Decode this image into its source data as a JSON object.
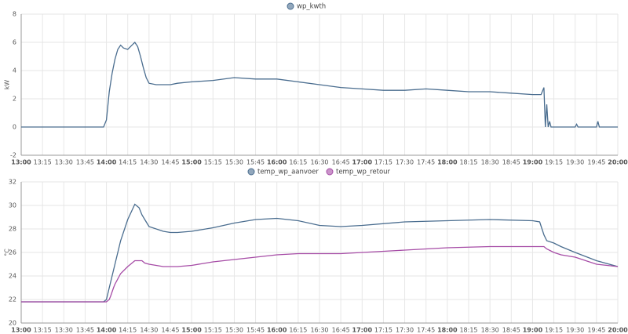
{
  "chart_data": [
    {
      "type": "line",
      "y_label": "kW",
      "x": [
        "13:00",
        "13:45",
        "13:58",
        "14:00",
        "14:02",
        "14:04",
        "14:06",
        "14:08",
        "14:10",
        "14:12",
        "14:15",
        "14:18",
        "14:20",
        "14:22",
        "14:24",
        "14:26",
        "14:28",
        "14:30",
        "14:35",
        "14:45",
        "14:50",
        "15:00",
        "15:15",
        "15:30",
        "15:45",
        "16:00",
        "16:15",
        "16:30",
        "16:45",
        "17:00",
        "17:15",
        "17:30",
        "17:45",
        "18:00",
        "18:15",
        "18:30",
        "18:45",
        "19:00",
        "19:06",
        "19:08",
        "19:09",
        "19:10",
        "19:11",
        "19:12",
        "19:13",
        "19:30",
        "19:31",
        "19:32",
        "19:45",
        "19:46",
        "19:47",
        "20:00"
      ],
      "series": [
        {
          "name": "wp_kwth",
          "color": "#4a6d8f",
          "values": [
            0,
            0,
            0,
            0.5,
            2.5,
            3.8,
            4.8,
            5.5,
            5.8,
            5.6,
            5.5,
            5.8,
            6.0,
            5.7,
            5.0,
            4.2,
            3.5,
            3.1,
            3.0,
            3.0,
            3.1,
            3.2,
            3.3,
            3.5,
            3.4,
            3.4,
            3.2,
            3.0,
            2.8,
            2.7,
            2.6,
            2.6,
            2.7,
            2.6,
            2.5,
            2.5,
            2.4,
            2.3,
            2.3,
            2.8,
            0,
            1.6,
            0,
            0.4,
            0,
            0,
            0.2,
            0,
            0,
            0.4,
            0,
            0
          ]
        }
      ],
      "xlim": [
        "13:00",
        "20:00"
      ],
      "xticks": [
        "13:00",
        "13:15",
        "13:30",
        "13:45",
        "14:00",
        "14:15",
        "14:30",
        "14:45",
        "15:00",
        "15:15",
        "15:30",
        "15:45",
        "16:00",
        "16:15",
        "16:30",
        "16:45",
        "17:00",
        "17:15",
        "17:30",
        "17:45",
        "18:00",
        "18:15",
        "18:30",
        "18:45",
        "19:00",
        "19:15",
        "19:30",
        "19:45",
        "20:00"
      ],
      "ylim": [
        -2,
        8
      ],
      "yticks": [
        -2,
        0,
        2,
        4,
        6,
        8
      ],
      "grid": true
    },
    {
      "type": "line",
      "y_label": "°C",
      "x": [
        "13:00",
        "13:58",
        "14:00",
        "14:02",
        "14:03",
        "14:05",
        "14:06",
        "14:10",
        "14:15",
        "14:20",
        "14:23",
        "14:25",
        "14:27",
        "14:30",
        "14:40",
        "14:45",
        "14:50",
        "15:00",
        "15:15",
        "15:30",
        "15:45",
        "16:00",
        "16:15",
        "16:30",
        "16:45",
        "17:00",
        "17:30",
        "18:00",
        "18:30",
        "19:00",
        "19:05",
        "19:08",
        "19:10",
        "19:15",
        "19:20",
        "19:30",
        "19:45",
        "20:00"
      ],
      "series": [
        {
          "name": "temp_wp_aanvoer",
          "color": "#4a6d8f",
          "values": [
            21.8,
            21.8,
            22,
            23,
            23.5,
            24.5,
            25,
            27,
            28.8,
            30.1,
            29.8,
            29.2,
            28.8,
            28.2,
            27.8,
            27.7,
            27.7,
            27.8,
            28.1,
            28.5,
            28.8,
            28.9,
            28.7,
            28.3,
            28.2,
            28.3,
            28.6,
            28.7,
            28.8,
            28.7,
            28.6,
            27.5,
            27,
            26.8,
            26.5,
            26,
            25.3,
            24.8
          ]
        },
        {
          "name": "temp_wp_retour",
          "color": "#a64ca6",
          "values": [
            21.8,
            21.8,
            21.8,
            22,
            22.3,
            23,
            23.3,
            24.2,
            24.8,
            25.3,
            25.3,
            25.3,
            25.1,
            25,
            24.8,
            24.8,
            24.8,
            24.9,
            25.2,
            25.4,
            25.6,
            25.8,
            25.9,
            25.9,
            25.9,
            26,
            26.2,
            26.4,
            26.5,
            26.5,
            26.5,
            26.5,
            26.3,
            26,
            25.8,
            25.6,
            25,
            24.8
          ]
        }
      ],
      "xlim": [
        "13:00",
        "20:00"
      ],
      "xticks": [
        "13:00",
        "13:15",
        "13:30",
        "13:45",
        "14:00",
        "14:15",
        "14:30",
        "14:45",
        "15:00",
        "15:15",
        "15:30",
        "15:45",
        "16:00",
        "16:15",
        "16:30",
        "16:45",
        "17:00",
        "17:15",
        "17:30",
        "17:45",
        "18:00",
        "18:15",
        "18:30",
        "18:45",
        "19:00",
        "19:15",
        "19:30",
        "19:45",
        "20:00"
      ],
      "ylim": [
        20,
        32
      ],
      "yticks": [
        20,
        22,
        24,
        26,
        28,
        30,
        32
      ],
      "grid": true
    }
  ]
}
